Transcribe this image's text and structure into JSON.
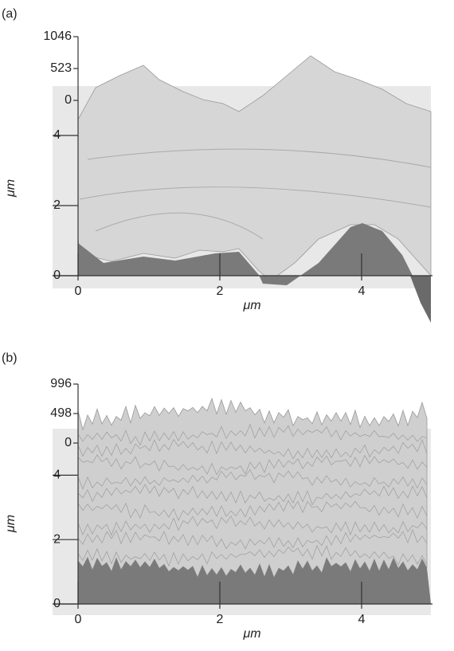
{
  "chart_data": [
    {
      "type": "surface",
      "panel_label": "(a)",
      "xlabel": "μm",
      "ylabel": "μm",
      "xlim": [
        0,
        5
      ],
      "xticks": [
        0,
        2,
        4
      ],
      "ylim": [
        0,
        5
      ],
      "yticks": [
        0,
        2,
        4
      ],
      "zlim": [
        0,
        1046
      ],
      "zticks": [
        0,
        523,
        1046
      ]
    },
    {
      "type": "surface",
      "panel_label": "(b)",
      "xlabel": "μm",
      "ylabel": "μm",
      "xlim": [
        0,
        5
      ],
      "xticks": [
        0,
        2,
        4
      ],
      "ylim": [
        0,
        5
      ],
      "yticks": [
        0,
        2,
        4
      ],
      "zlim": [
        0,
        996
      ],
      "zticks": [
        0,
        498,
        996
      ]
    }
  ]
}
